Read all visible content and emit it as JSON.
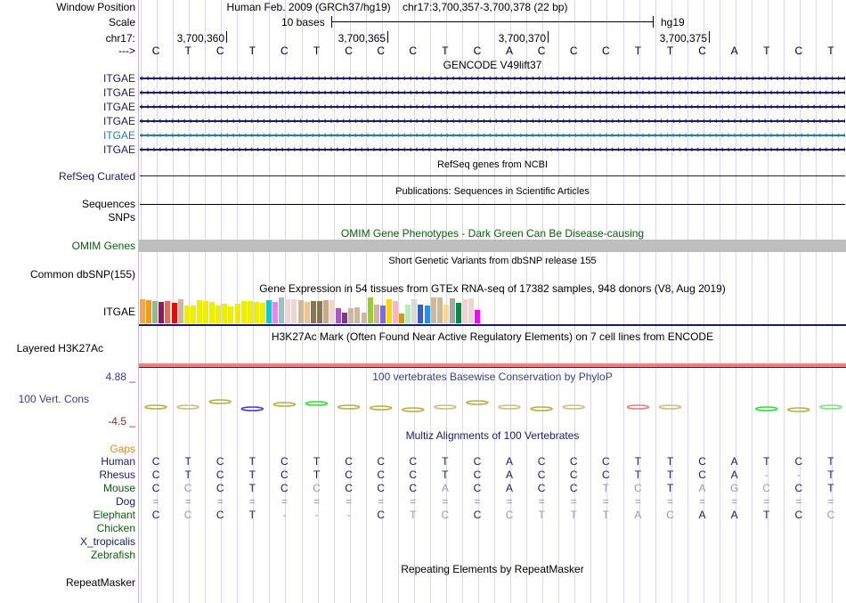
{
  "header": {
    "window_position_label": "Window Position",
    "scale_label": "Scale",
    "chrom_label": "chr17:",
    "strand_label": "--->",
    "assembly": "Human Feb. 2009 (GRCh37/hg19)",
    "position": "chr17:3,700,357-3,700,378 (22 bp)",
    "scale_text": "10 bases",
    "db": "hg19",
    "ticks": [
      "3,700,360",
      "3,700,365",
      "3,700,370",
      "3,700,375"
    ],
    "sequence": [
      "C",
      "T",
      "C",
      "T",
      "C",
      "T",
      "C",
      "C",
      "C",
      "T",
      "C",
      "A",
      "C",
      "C",
      "C",
      "T",
      "T",
      "C",
      "A",
      "T",
      "C",
      "T"
    ]
  },
  "tracks": {
    "gencode": {
      "title": "GENCODE V49lift37",
      "items": [
        {
          "label": "ITGAE",
          "color": "#1a1a6e"
        },
        {
          "label": "ITGAE",
          "color": "#1a1a6e"
        },
        {
          "label": "ITGAE",
          "color": "#1a1a6e"
        },
        {
          "label": "ITGAE",
          "color": "#1a1a6e"
        },
        {
          "label": "ITGAE",
          "color": "#2a7ea6"
        },
        {
          "label": "ITGAE",
          "color": "#1a1a6e"
        }
      ]
    },
    "refseq": {
      "title": "RefSeq genes from NCBI",
      "label": "RefSeq Curated"
    },
    "publications": {
      "title": "Publications: Sequences in Scientific Articles",
      "label": "Sequences"
    },
    "snps_label": "SNPs",
    "omim": {
      "title": "OMIM Gene Phenotypes - Dark Green Can Be Disease-causing",
      "label": "OMIM Genes"
    },
    "dbsnp": {
      "title": "Short Genetic Variants from dbSNP release 155",
      "label": "Common dbSNP(155)"
    },
    "gtex": {
      "title": "Gene Expression in 54 tissues from GTEx RNA-seq of 17382 samples, 948 donors (V8, Aug 2019)",
      "label": "ITGAE",
      "bars": [
        {
          "color": "#f4a460",
          "level": 0.93
        },
        {
          "color": "#f0a000",
          "level": 0.9
        },
        {
          "color": "#8fbc8f",
          "level": 0.87
        },
        {
          "color": "#8b1c62",
          "level": 0.83
        },
        {
          "color": "#ee6a50",
          "level": 0.87
        },
        {
          "color": "#ff0000",
          "level": 0.8
        },
        {
          "color": "#cdb79e",
          "level": 0.93
        },
        {
          "color": "#eeee00",
          "level": 0.7
        },
        {
          "color": "#eeee00",
          "level": 0.7
        },
        {
          "color": "#eeee00",
          "level": 0.9
        },
        {
          "color": "#eeee00",
          "level": 0.87
        },
        {
          "color": "#eeee00",
          "level": 0.83
        },
        {
          "color": "#eeee00",
          "level": 0.7
        },
        {
          "color": "#eeee00",
          "level": 0.77
        },
        {
          "color": "#eeee00",
          "level": 0.67
        },
        {
          "color": "#eeee00",
          "level": 0.77
        },
        {
          "color": "#eeee00",
          "level": 0.87
        },
        {
          "color": "#eeee00",
          "level": 0.87
        },
        {
          "color": "#eeee00",
          "level": 0.83
        },
        {
          "color": "#eeee00",
          "level": 0.8
        },
        {
          "color": "#00cdcd",
          "level": 0.9
        },
        {
          "color": "#ee82ee",
          "level": 0.83
        },
        {
          "color": "#9ac0cd",
          "level": 1.0
        },
        {
          "color": "#eed5d2",
          "level": 0.93
        },
        {
          "color": "#eed5d2",
          "level": 0.93
        },
        {
          "color": "#cdb79e",
          "level": 0.9
        },
        {
          "color": "#eec591",
          "level": 0.83
        },
        {
          "color": "#8b7355",
          "level": 0.87
        },
        {
          "color": "#8b7355",
          "level": 0.87
        },
        {
          "color": "#cdaa7d",
          "level": 0.9
        },
        {
          "color": "#eed5d2",
          "level": 0.9
        },
        {
          "color": "#b452cd",
          "level": 0.6
        },
        {
          "color": "#7a378b",
          "level": 0.43
        },
        {
          "color": "#cdb79e",
          "level": 0.57
        },
        {
          "color": "#cdb79e",
          "level": 0.63
        },
        {
          "color": "#cdb79e",
          "level": 0.4
        },
        {
          "color": "#9acd32",
          "level": 1.0
        },
        {
          "color": "#cdb79e",
          "level": 0.73
        },
        {
          "color": "#7b68ee",
          "level": 0.7
        },
        {
          "color": "#ffd700",
          "level": 0.93
        },
        {
          "color": "#ffb6c1",
          "level": 0.87
        },
        {
          "color": "#cd9b1d",
          "level": 0.37
        },
        {
          "color": "#b4eeb4",
          "level": 0.73
        },
        {
          "color": "#d9d9d9",
          "level": 0.93
        },
        {
          "color": "#3a5fcd",
          "level": 0.73
        },
        {
          "color": "#1e90ff",
          "level": 0.7
        },
        {
          "color": "#cdb79e",
          "level": 1.0
        },
        {
          "color": "#cdb79e",
          "level": 1.0
        },
        {
          "color": "#ffd39b",
          "level": 0.73
        },
        {
          "color": "#a6a6a6",
          "level": 0.97
        },
        {
          "color": "#008b45",
          "level": 0.8
        },
        {
          "color": "#eed5d2",
          "level": 0.93
        },
        {
          "color": "#eed5d2",
          "level": 0.97
        },
        {
          "color": "#ff00ff",
          "level": 0.5
        }
      ]
    },
    "h3k27ac": {
      "title": "H3K27Ac Mark (Often Found Near Active Regulatory Elements) on 7 cell lines from ENCODE",
      "label": "Layered H3K27Ac"
    },
    "phylop": {
      "title": "100 vertebrates Basewise Conservation by PhyloP",
      "label": "100 Vert. Cons",
      "max": "4.88 _",
      "min": "-4.5 _"
    },
    "multiz": {
      "title": "Multiz Alignments of 100 Vertebrates",
      "gaps_label": "Gaps",
      "species": [
        {
          "name": "Human",
          "color": "#1a1a6e",
          "bases": [
            "C",
            "T",
            "C",
            "T",
            "C",
            "T",
            "C",
            "C",
            "C",
            "T",
            "C",
            "A",
            "C",
            "C",
            "C",
            "T",
            "T",
            "C",
            "A",
            "T",
            "C",
            "T"
          ],
          "faint": []
        },
        {
          "name": "Rhesus",
          "color": "#1a1a6e",
          "bases": [
            "C",
            "T",
            "C",
            "T",
            "C",
            "T",
            "C",
            "C",
            "C",
            "T",
            "C",
            "A",
            "C",
            "C",
            "C",
            "T",
            "T",
            "C",
            "A",
            "-",
            "-",
            "T"
          ],
          "faint": [
            19,
            20
          ]
        },
        {
          "name": "Mouse",
          "color": "#0b5e0b",
          "bases": [
            "C",
            "C",
            "C",
            "T",
            "C",
            "C",
            "C",
            "C",
            "C",
            "A",
            "C",
            "A",
            "C",
            "C",
            "T",
            "C",
            "T",
            "A",
            "G",
            "C",
            "C",
            "T"
          ],
          "faint": [
            1,
            5,
            9,
            14,
            15,
            17,
            18,
            19
          ]
        },
        {
          "name": "Dog",
          "color": "#1a1a6e",
          "bases": [
            "=",
            "=",
            "=",
            "=",
            "=",
            "=",
            "=",
            "=",
            "=",
            "=",
            "=",
            "=",
            "=",
            "=",
            "=",
            "=",
            "=",
            "=",
            "=",
            "=",
            "=",
            "="
          ],
          "faint": [
            0,
            1,
            2,
            3,
            4,
            5,
            6,
            7,
            8,
            9,
            10,
            11,
            12,
            13,
            14,
            15,
            16,
            17,
            18,
            19,
            20,
            21
          ]
        },
        {
          "name": "Elephant",
          "color": "#0b5e0b",
          "bases": [
            "C",
            "C",
            "C",
            "T",
            "-",
            "-",
            "-",
            "C",
            "T",
            "C",
            "C",
            "C",
            "T",
            "T",
            "T",
            "A",
            "C",
            "A",
            "A",
            "T",
            "C",
            "C"
          ],
          "faint": [
            1,
            4,
            5,
            6,
            8,
            9,
            11,
            12,
            13,
            14,
            15,
            16,
            21
          ]
        },
        {
          "name": "Chicken",
          "color": "#0b5e0b",
          "bases": [],
          "faint": []
        },
        {
          "name": "X_tropicalis",
          "color": "#1a1a6e",
          "bases": [],
          "faint": []
        },
        {
          "name": "Zebrafish",
          "color": "#0b5e0b",
          "bases": [],
          "faint": []
        }
      ]
    },
    "repeatmasker": {
      "title": "Repeating Elements by RepeatMasker",
      "label": "RepeatMasker"
    }
  }
}
